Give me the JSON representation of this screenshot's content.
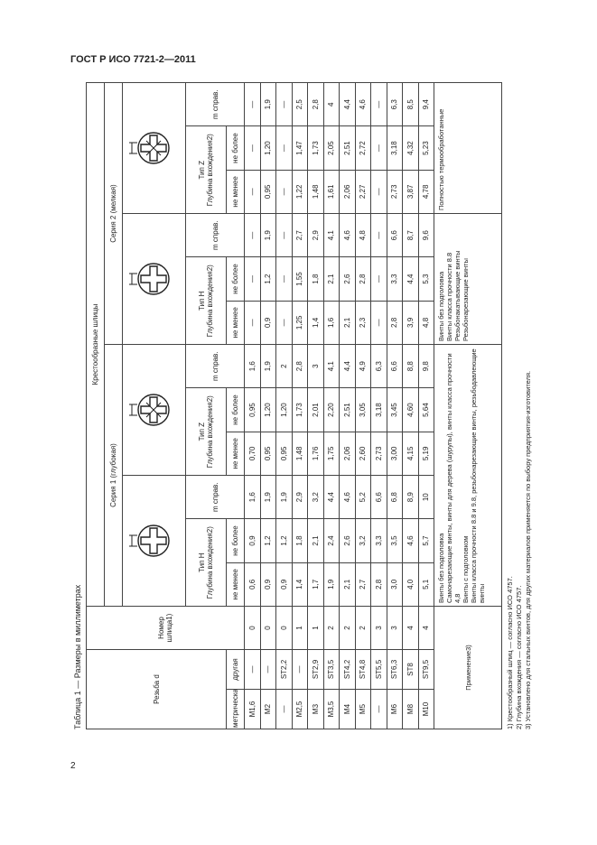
{
  "header": {
    "title": "ГОСТ Р ИСО 7721-2—2011",
    "page": "2"
  },
  "table": {
    "caption": "Таблица 1 — Размеры в миллиметрах",
    "thread": "Резьба d",
    "slot_no": "Номер шлица1)",
    "slots": "Крестообразные шлицы",
    "series": [
      "Серия 1 (глубокая)",
      "Серия 2 (мелкая)"
    ],
    "types": [
      "Тип H",
      "Тип Z",
      "Тип H",
      "Тип Z"
    ],
    "depth": "Глубина вхождения2)",
    "m": "m справ.",
    "min": "не менее",
    "max": "не более",
    "metric": "метрическая",
    "other": "другая",
    "rows": [
      [
        "M1,6",
        "—",
        "0",
        "0,6",
        "0,9",
        "1,6",
        "0,70",
        "0,95",
        "1,6",
        "—",
        "—",
        "—",
        "—",
        "—",
        "—"
      ],
      [
        "M2",
        "—",
        "0",
        "0,9",
        "1,2",
        "1,9",
        "0,95",
        "1,20",
        "1,9",
        "0,9",
        "1,2",
        "1,9",
        "0,95",
        "1,20",
        "1,9"
      ],
      [
        "—",
        "ST2,2",
        "0",
        "0,9",
        "1,2",
        "1,9",
        "0,95",
        "1,20",
        "2",
        "—",
        "—",
        "—",
        "—",
        "—",
        "—"
      ],
      [
        "M2,5",
        "—",
        "1",
        "1,4",
        "1,8",
        "2,9",
        "1,48",
        "1,73",
        "2,8",
        "1,25",
        "1,55",
        "2,7",
        "1,22",
        "1,47",
        "2,5"
      ],
      [
        "M3",
        "ST2,9",
        "1",
        "1,7",
        "2,1",
        "3,2",
        "1,76",
        "2,01",
        "3",
        "1,4",
        "1,8",
        "2,9",
        "1,48",
        "1,73",
        "2,8"
      ],
      [
        "M3,5",
        "ST3,5",
        "2",
        "1,9",
        "2,4",
        "4,4",
        "1,75",
        "2,20",
        "4,1",
        "1,6",
        "2,1",
        "4,1",
        "1,61",
        "2,05",
        "4"
      ],
      [
        "M4",
        "ST4,2",
        "2",
        "2,1",
        "2,6",
        "4,6",
        "2,06",
        "2,51",
        "4,4",
        "2,1",
        "2,6",
        "4,6",
        "2,06",
        "2,51",
        "4,4"
      ],
      [
        "M5",
        "ST4,8",
        "2",
        "2,7",
        "3,2",
        "5,2",
        "2,60",
        "3,05",
        "4,9",
        "2,3",
        "2,8",
        "4,8",
        "2,27",
        "2,72",
        "4,6"
      ],
      [
        "—",
        "ST5,5",
        "3",
        "2,8",
        "3,3",
        "6,6",
        "2,73",
        "3,18",
        "6,3",
        "—",
        "—",
        "—",
        "—",
        "—",
        "—"
      ],
      [
        "M6",
        "ST6,3",
        "3",
        "3,0",
        "3,5",
        "6,8",
        "3,00",
        "3,45",
        "6,6",
        "2,8",
        "3,3",
        "6,6",
        "2,73",
        "3,18",
        "6,3"
      ],
      [
        "M8",
        "ST8",
        "4",
        "4,0",
        "4,6",
        "8,9",
        "4,15",
        "4,60",
        "8,8",
        "3,9",
        "4,4",
        "8,7",
        "3,87",
        "4,32",
        "8,5"
      ],
      [
        "M10",
        "ST9,5",
        "4",
        "5,1",
        "5,7",
        "10",
        "5,19",
        "5,64",
        "9,8",
        "4,8",
        "5,3",
        "9,6",
        "4,78",
        "5,23",
        "9,4"
      ]
    ],
    "application": {
      "label": "Применение3)",
      "series1": [
        "Винты без подголовка",
        "Самонарезающие винты, винты для дерева (шурупы), винты класса прочности 4,8",
        "Винты с подголовком",
        "Винты класса прочности 8.8 и 9.8, резьбонарезающие винты, резьбодавлеющие винты"
      ],
      "series2_h": [
        "Винты без подголовка",
        "Винты класса прочности 8.8",
        "Резьбонакатывающие винты",
        "Резьбонарезающие винты"
      ],
      "series2_z": [
        "Полностью термообработанные"
      ]
    },
    "footnotes": [
      "1) Крестообразный шлиц — согласно ИСО 4757.",
      "2) Глубина вхождения — согласно ИСО 4757.",
      "3) Установлено для стальных винтов, для других материалов применяется по выбору предприятия-изготовителя."
    ]
  }
}
